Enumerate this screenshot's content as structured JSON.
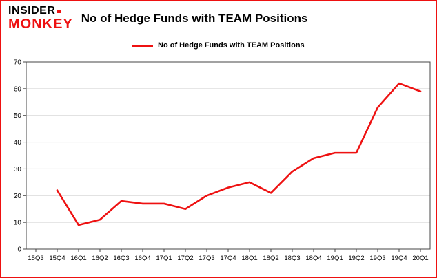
{
  "page": {
    "background": "#ffffff",
    "border_color": "#ee1111"
  },
  "logo": {
    "line1": "INSIDER",
    "line2": "MONKEY",
    "square_color": "#ee1111"
  },
  "header": {
    "title": "No of Hedge Funds with TEAM Positions"
  },
  "legend": {
    "label": "No of Hedge Funds with TEAM Positions",
    "swatch_color": "#ee1111"
  },
  "chart_data": {
    "type": "line",
    "title": "No of Hedge Funds with TEAM Positions",
    "legend": "No of Hedge Funds with TEAM Positions",
    "categories": [
      "15Q3",
      "15Q4",
      "16Q1",
      "16Q2",
      "16Q3",
      "16Q4",
      "17Q1",
      "17Q2",
      "17Q3",
      "17Q4",
      "18Q1",
      "18Q2",
      "18Q3",
      "18Q4",
      "19Q1",
      "19Q2",
      "19Q3",
      "19Q4",
      "20Q1"
    ],
    "values": [
      null,
      22,
      9,
      11,
      18,
      17,
      17,
      15,
      20,
      23,
      25,
      21,
      29,
      34,
      36,
      36,
      53,
      62,
      59
    ],
    "ylim": [
      0,
      70
    ],
    "yticks": [
      0,
      10,
      20,
      30,
      40,
      50,
      60,
      70
    ],
    "grid": true,
    "legend_position": "top-left",
    "line_color": "#ee1111",
    "grid_color": "#d8d8d8",
    "axis_color": "#444444",
    "text_color": "#000000"
  }
}
